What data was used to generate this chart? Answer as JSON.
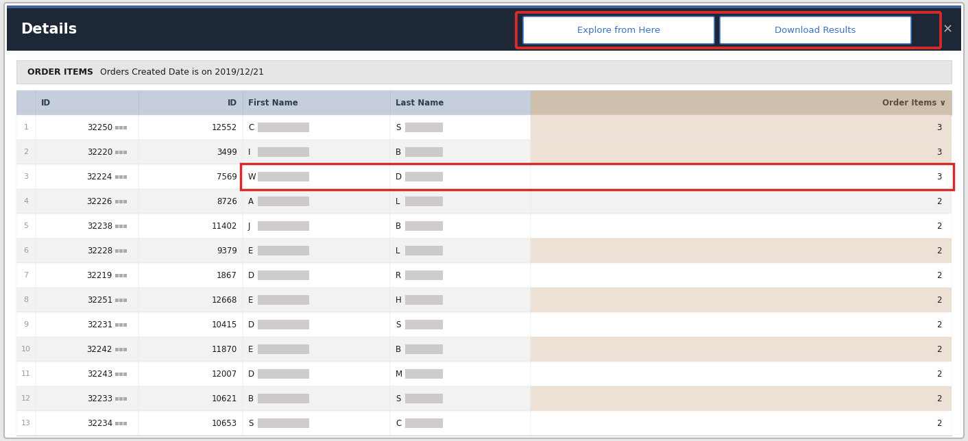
{
  "title": "Details",
  "header_bg": "#1e2736",
  "header_text_color": "#ffffff",
  "header_accent_top": "#3d6199",
  "button1": "Explore from Here",
  "button2": "Download Results",
  "col_headers": [
    "ID",
    "ID",
    "First Name",
    "Last Name",
    "Order Items"
  ],
  "col_header_bg": "#c5ceda",
  "order_items_col_bg": "#cfc0ad",
  "filter_bar_bg": "#e6e6e6",
  "filter_bar_text_bold": "ORDER ITEMS",
  "filter_bar_text": "   Orders Created Date is on 2019/12/21",
  "rows": [
    {
      "row_num": 1,
      "id1": "32250",
      "id2": "12552",
      "first": "C",
      "last": "S",
      "items": 3,
      "items_highlight": true
    },
    {
      "row_num": 2,
      "id1": "32220",
      "id2": "3499",
      "first": "I",
      "last": "B",
      "items": 3,
      "items_highlight": true
    },
    {
      "row_num": 3,
      "id1": "32224",
      "id2": "7569",
      "first": "W",
      "last": "D",
      "items": 3,
      "items_highlight": false,
      "red_box": true
    },
    {
      "row_num": 4,
      "id1": "32226",
      "id2": "8726",
      "first": "A",
      "last": "L",
      "items": 2,
      "items_highlight": false
    },
    {
      "row_num": 5,
      "id1": "32238",
      "id2": "11402",
      "first": "J",
      "last": "B",
      "items": 2,
      "items_highlight": false
    },
    {
      "row_num": 6,
      "id1": "32228",
      "id2": "9379",
      "first": "E",
      "last": "L",
      "items": 2,
      "items_highlight": true
    },
    {
      "row_num": 7,
      "id1": "32219",
      "id2": "1867",
      "first": "D",
      "last": "R",
      "items": 2,
      "items_highlight": false
    },
    {
      "row_num": 8,
      "id1": "32251",
      "id2": "12668",
      "first": "E",
      "last": "H",
      "items": 2,
      "items_highlight": true
    },
    {
      "row_num": 9,
      "id1": "32231",
      "id2": "10415",
      "first": "D",
      "last": "S",
      "items": 2,
      "items_highlight": false
    },
    {
      "row_num": 10,
      "id1": "32242",
      "id2": "11870",
      "first": "E",
      "last": "B",
      "items": 2,
      "items_highlight": true
    },
    {
      "row_num": 11,
      "id1": "32243",
      "id2": "12007",
      "first": "D",
      "last": "M",
      "items": 2,
      "items_highlight": false
    },
    {
      "row_num": 12,
      "id1": "32233",
      "id2": "10621",
      "first": "B",
      "last": "S",
      "items": 2,
      "items_highlight": true
    },
    {
      "row_num": 13,
      "id1": "32234",
      "id2": "10653",
      "first": "S",
      "last": "C",
      "items": 2,
      "items_highlight": false
    }
  ],
  "row_bg_white": "#ffffff",
  "row_bg_gray": "#f2f2f2",
  "row_bg_tan": "#ede0d4",
  "text_dark": "#1a1a1a",
  "text_gray": "#999999",
  "blur_color": "#c8c4c4",
  "red_color": "#d42b2b",
  "btn_blue": "#3a72c4",
  "outer_bg": "#e8e8e8",
  "card_bg": "#ffffff",
  "border_color": "#b8b8b8"
}
